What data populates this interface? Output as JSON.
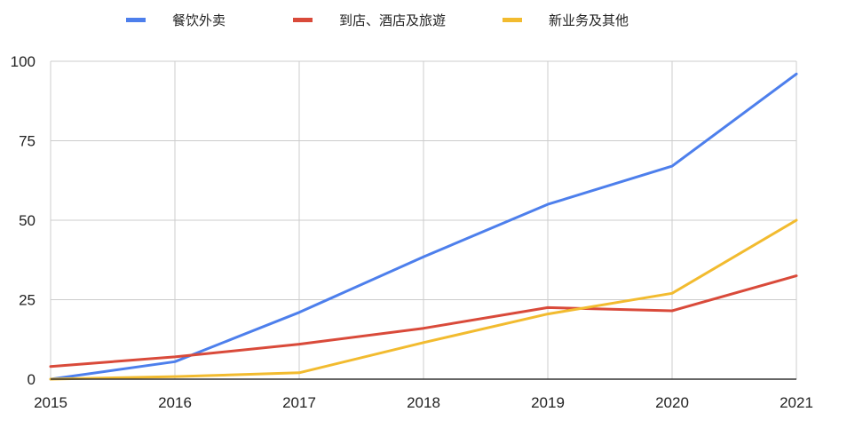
{
  "chart_data": {
    "type": "line",
    "title": "",
    "xlabel": "",
    "ylabel": "",
    "categories": [
      "2015",
      "2016",
      "2017",
      "2018",
      "2019",
      "2020",
      "2021"
    ],
    "ylim": [
      0,
      100
    ],
    "yticks": [
      0,
      25,
      50,
      75,
      100
    ],
    "grid": true,
    "legend_position": "top",
    "series": [
      {
        "name": "餐饮外卖",
        "color": "#4d7fec",
        "values": [
          0,
          5.5,
          21,
          38.5,
          55,
          67,
          96
        ]
      },
      {
        "name": "到店、酒店及旅遊",
        "color": "#d94a3a",
        "values": [
          4,
          7,
          11,
          16,
          22.5,
          21.5,
          32.5
        ]
      },
      {
        "name": "新业务及其他",
        "color": "#f2bb2f",
        "values": [
          0,
          0.8,
          2,
          11.5,
          20.5,
          27,
          50
        ]
      }
    ]
  }
}
